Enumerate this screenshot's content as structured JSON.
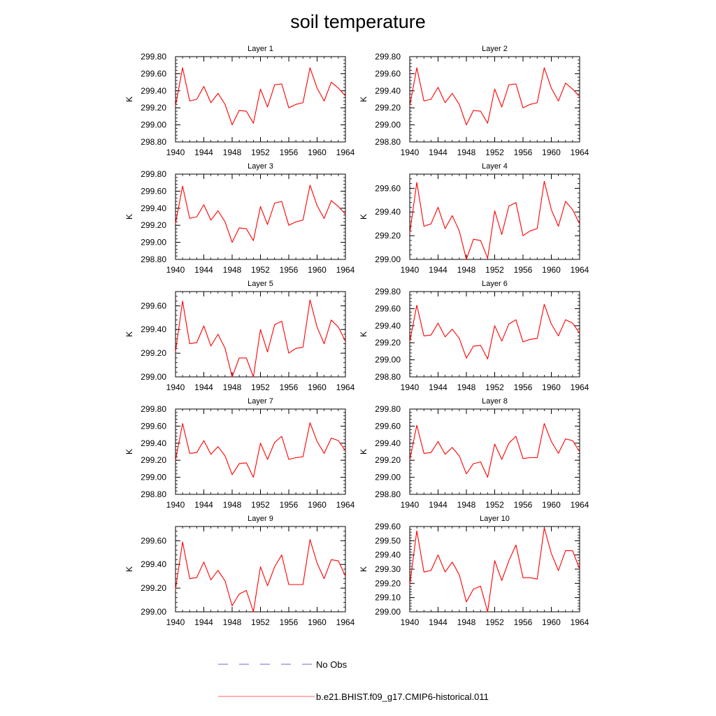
{
  "figure": {
    "title": "soil temperature",
    "line_color": "#ff0000",
    "obs_color": "#6a6ad0"
  },
  "legend": {
    "items": [
      {
        "label": "No Obs",
        "style": "dashed",
        "color": "#6a6ad0"
      },
      {
        "label": "b.e21.BHIST.f09_g17.CMIP6-historical.011",
        "style": "solid",
        "color": "#ff0000"
      }
    ]
  },
  "chart_data": [
    {
      "type": "line",
      "title": "Layer 1",
      "ylabel": "K",
      "xlim": [
        1940,
        1964
      ],
      "ylim": [
        298.8,
        299.8
      ],
      "xticks": [
        1940,
        1944,
        1948,
        1952,
        1956,
        1960,
        1964
      ],
      "yticks": [
        "298.80",
        "299.00",
        "299.20",
        "299.40",
        "299.60",
        "299.80"
      ],
      "x": [
        1940,
        1941,
        1942,
        1943,
        1944,
        1945,
        1946,
        1947,
        1948,
        1949,
        1950,
        1951,
        1952,
        1953,
        1954,
        1955,
        1956,
        1957,
        1958,
        1959,
        1960,
        1961,
        1962,
        1963,
        1964
      ],
      "series": [
        {
          "values": [
            299.22,
            299.67,
            299.28,
            299.3,
            299.45,
            299.26,
            299.37,
            299.24,
            299.0,
            299.17,
            299.16,
            299.02,
            299.42,
            299.21,
            299.47,
            299.48,
            299.2,
            299.24,
            299.26,
            299.67,
            299.43,
            299.28,
            299.5,
            299.43,
            299.34
          ]
        }
      ]
    },
    {
      "type": "line",
      "title": "Layer 2",
      "ylabel": "K",
      "xlim": [
        1940,
        1964
      ],
      "ylim": [
        298.8,
        299.8
      ],
      "xticks": [
        1940,
        1944,
        1948,
        1952,
        1956,
        1960,
        1964
      ],
      "yticks": [
        "298.80",
        "299.00",
        "299.20",
        "299.40",
        "299.60",
        "299.80"
      ],
      "x": [
        1940,
        1941,
        1942,
        1943,
        1944,
        1945,
        1946,
        1947,
        1948,
        1949,
        1950,
        1951,
        1952,
        1953,
        1954,
        1955,
        1956,
        1957,
        1958,
        1959,
        1960,
        1961,
        1962,
        1963,
        1964
      ],
      "series": [
        {
          "values": [
            299.22,
            299.67,
            299.28,
            299.3,
            299.44,
            299.26,
            299.37,
            299.24,
            299.0,
            299.17,
            299.16,
            299.02,
            299.42,
            299.21,
            299.47,
            299.48,
            299.2,
            299.24,
            299.26,
            299.67,
            299.43,
            299.28,
            299.49,
            299.42,
            299.33
          ]
        }
      ]
    },
    {
      "type": "line",
      "title": "Layer 3",
      "ylabel": "K",
      "xlim": [
        1940,
        1964
      ],
      "ylim": [
        298.8,
        299.8
      ],
      "xticks": [
        1940,
        1944,
        1948,
        1952,
        1956,
        1960,
        1964
      ],
      "yticks": [
        "298.80",
        "299.00",
        "299.20",
        "299.40",
        "299.60",
        "299.80"
      ],
      "x": [
        1940,
        1941,
        1942,
        1943,
        1944,
        1945,
        1946,
        1947,
        1948,
        1949,
        1950,
        1951,
        1952,
        1953,
        1954,
        1955,
        1956,
        1957,
        1958,
        1959,
        1960,
        1961,
        1962,
        1963,
        1964
      ],
      "series": [
        {
          "values": [
            299.22,
            299.66,
            299.28,
            299.3,
            299.44,
            299.26,
            299.37,
            299.24,
            299.0,
            299.17,
            299.16,
            299.02,
            299.42,
            299.21,
            299.46,
            299.48,
            299.2,
            299.24,
            299.26,
            299.67,
            299.43,
            299.28,
            299.49,
            299.42,
            299.33
          ]
        }
      ]
    },
    {
      "type": "line",
      "title": "Layer 4",
      "ylabel": "K",
      "xlim": [
        1940,
        1964
      ],
      "ylim": [
        299.0,
        299.72
      ],
      "xticks": [
        1940,
        1944,
        1948,
        1952,
        1956,
        1960,
        1964
      ],
      "yticks": [
        "299.00",
        "299.20",
        "299.40",
        "299.60"
      ],
      "x": [
        1940,
        1941,
        1942,
        1943,
        1944,
        1945,
        1946,
        1947,
        1948,
        1949,
        1950,
        1951,
        1952,
        1953,
        1954,
        1955,
        1956,
        1957,
        1958,
        1959,
        1960,
        1961,
        1962,
        1963,
        1964
      ],
      "series": [
        {
          "values": [
            299.22,
            299.65,
            299.28,
            299.3,
            299.44,
            299.26,
            299.37,
            299.24,
            299.0,
            299.17,
            299.16,
            299.01,
            299.41,
            299.21,
            299.45,
            299.48,
            299.2,
            299.24,
            299.26,
            299.66,
            299.42,
            299.28,
            299.49,
            299.42,
            299.3
          ]
        }
      ]
    },
    {
      "type": "line",
      "title": "Layer 5",
      "ylabel": "K",
      "xlim": [
        1940,
        1964
      ],
      "ylim": [
        299.0,
        299.72
      ],
      "xticks": [
        1940,
        1944,
        1948,
        1952,
        1956,
        1960,
        1964
      ],
      "yticks": [
        "299.00",
        "299.20",
        "299.40",
        "299.60"
      ],
      "x": [
        1940,
        1941,
        1942,
        1943,
        1944,
        1945,
        1946,
        1947,
        1948,
        1949,
        1950,
        1951,
        1952,
        1953,
        1954,
        1955,
        1956,
        1957,
        1958,
        1959,
        1960,
        1961,
        1962,
        1963,
        1964
      ],
      "series": [
        {
          "values": [
            299.21,
            299.64,
            299.28,
            299.29,
            299.43,
            299.26,
            299.36,
            299.24,
            299.0,
            299.16,
            299.16,
            299.0,
            299.4,
            299.21,
            299.44,
            299.47,
            299.2,
            299.24,
            299.25,
            299.65,
            299.42,
            299.28,
            299.48,
            299.42,
            299.3
          ]
        }
      ]
    },
    {
      "type": "line",
      "title": "Layer 6",
      "ylabel": "K",
      "xlim": [
        1940,
        1964
      ],
      "ylim": [
        298.8,
        299.8
      ],
      "xticks": [
        1940,
        1944,
        1948,
        1952,
        1956,
        1960,
        1964
      ],
      "yticks": [
        "298.80",
        "299.00",
        "299.20",
        "299.40",
        "299.60",
        "299.80"
      ],
      "x": [
        1940,
        1941,
        1942,
        1943,
        1944,
        1945,
        1946,
        1947,
        1948,
        1949,
        1950,
        1951,
        1952,
        1953,
        1954,
        1955,
        1956,
        1957,
        1958,
        1959,
        1960,
        1961,
        1962,
        1963,
        1964
      ],
      "series": [
        {
          "values": [
            299.21,
            299.64,
            299.28,
            299.29,
            299.43,
            299.27,
            299.36,
            299.25,
            299.02,
            299.16,
            299.17,
            299.01,
            299.4,
            299.22,
            299.42,
            299.47,
            299.21,
            299.24,
            299.25,
            299.65,
            299.42,
            299.28,
            299.47,
            299.43,
            299.31
          ]
        }
      ]
    },
    {
      "type": "line",
      "title": "Layer 7",
      "ylabel": "K",
      "xlim": [
        1940,
        1964
      ],
      "ylim": [
        298.8,
        299.8
      ],
      "xticks": [
        1940,
        1944,
        1948,
        1952,
        1956,
        1960,
        1964
      ],
      "yticks": [
        "298.80",
        "299.00",
        "299.20",
        "299.40",
        "299.60",
        "299.80"
      ],
      "x": [
        1940,
        1941,
        1942,
        1943,
        1944,
        1945,
        1946,
        1947,
        1948,
        1949,
        1950,
        1951,
        1952,
        1953,
        1954,
        1955,
        1956,
        1957,
        1958,
        1959,
        1960,
        1961,
        1962,
        1963,
        1964
      ],
      "series": [
        {
          "values": [
            299.2,
            299.63,
            299.28,
            299.29,
            299.43,
            299.27,
            299.36,
            299.25,
            299.03,
            299.16,
            299.17,
            299.0,
            299.4,
            299.21,
            299.41,
            299.48,
            299.21,
            299.23,
            299.24,
            299.64,
            299.42,
            299.28,
            299.46,
            299.43,
            299.31
          ]
        }
      ]
    },
    {
      "type": "line",
      "title": "Layer 8",
      "ylabel": "K",
      "xlim": [
        1940,
        1964
      ],
      "ylim": [
        298.8,
        299.8
      ],
      "xticks": [
        1940,
        1944,
        1948,
        1952,
        1956,
        1960,
        1964
      ],
      "yticks": [
        "298.80",
        "299.00",
        "299.20",
        "299.40",
        "299.60",
        "299.80"
      ],
      "x": [
        1940,
        1941,
        1942,
        1943,
        1944,
        1945,
        1946,
        1947,
        1948,
        1949,
        1950,
        1951,
        1952,
        1953,
        1954,
        1955,
        1956,
        1957,
        1958,
        1959,
        1960,
        1961,
        1962,
        1963,
        1964
      ],
      "series": [
        {
          "values": [
            299.2,
            299.61,
            299.28,
            299.29,
            299.42,
            299.27,
            299.35,
            299.25,
            299.04,
            299.16,
            299.18,
            299.0,
            299.39,
            299.21,
            299.4,
            299.48,
            299.22,
            299.23,
            299.23,
            299.63,
            299.42,
            299.28,
            299.45,
            299.43,
            299.3
          ]
        }
      ]
    },
    {
      "type": "line",
      "title": "Layer 9",
      "ylabel": "K",
      "xlim": [
        1940,
        1964
      ],
      "ylim": [
        299.0,
        299.72
      ],
      "xticks": [
        1940,
        1944,
        1948,
        1952,
        1956,
        1960,
        1964
      ],
      "yticks": [
        "299.00",
        "299.20",
        "299.40",
        "299.60"
      ],
      "x": [
        1940,
        1941,
        1942,
        1943,
        1944,
        1945,
        1946,
        1947,
        1948,
        1949,
        1950,
        1951,
        1952,
        1953,
        1954,
        1955,
        1956,
        1957,
        1958,
        1959,
        1960,
        1961,
        1962,
        1963,
        1964
      ],
      "series": [
        {
          "values": [
            299.19,
            299.59,
            299.28,
            299.29,
            299.42,
            299.27,
            299.35,
            299.26,
            299.05,
            299.15,
            299.18,
            299.0,
            299.38,
            299.22,
            299.38,
            299.48,
            299.23,
            299.23,
            299.23,
            299.61,
            299.41,
            299.28,
            299.44,
            299.43,
            299.3
          ]
        }
      ]
    },
    {
      "type": "line",
      "title": "Layer 10",
      "ylabel": "K",
      "xlim": [
        1940,
        1964
      ],
      "ylim": [
        299.0,
        299.6
      ],
      "xticks": [
        1940,
        1944,
        1948,
        1952,
        1956,
        1960,
        1964
      ],
      "yticks": [
        "299.00",
        "299.10",
        "299.20",
        "299.30",
        "299.40",
        "299.50",
        "299.60"
      ],
      "x": [
        1940,
        1941,
        1942,
        1943,
        1944,
        1945,
        1946,
        1947,
        1948,
        1949,
        1950,
        1951,
        1952,
        1953,
        1954,
        1955,
        1956,
        1957,
        1958,
        1959,
        1960,
        1961,
        1962,
        1963,
        1964
      ],
      "series": [
        {
          "values": [
            299.19,
            299.57,
            299.28,
            299.29,
            299.4,
            299.28,
            299.35,
            299.26,
            299.07,
            299.16,
            299.18,
            299.0,
            299.36,
            299.22,
            299.36,
            299.47,
            299.24,
            299.24,
            299.23,
            299.59,
            299.41,
            299.29,
            299.43,
            299.43,
            299.3
          ]
        }
      ]
    }
  ]
}
